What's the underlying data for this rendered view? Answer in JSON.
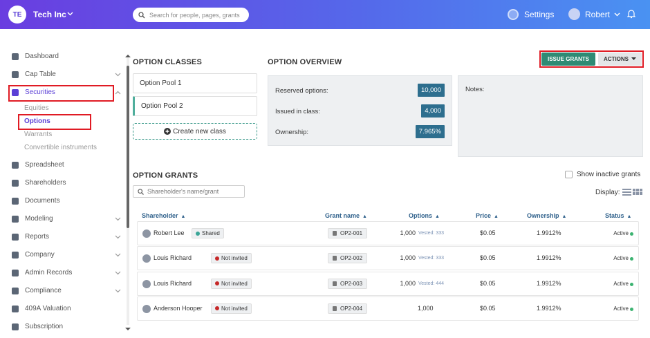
{
  "header": {
    "logo": "TE",
    "company": "Tech Inc",
    "search_placeholder": "Search for people, pages, grants",
    "settings": "Settings",
    "user": "Robert"
  },
  "sidebar": {
    "items": [
      {
        "label": "Dashboard",
        "expandable": false
      },
      {
        "label": "Cap Table",
        "expandable": true
      },
      {
        "label": "Securities",
        "expandable": true,
        "active": true,
        "children": [
          "Equities",
          "Options",
          "Warrants",
          "Convertible instruments"
        ],
        "active_child": 1
      },
      {
        "label": "Spreadsheet",
        "expandable": false
      },
      {
        "label": "Shareholders",
        "expandable": false
      },
      {
        "label": "Documents",
        "expandable": false
      },
      {
        "label": "Modeling",
        "expandable": true
      },
      {
        "label": "Reports",
        "expandable": true
      },
      {
        "label": "Company",
        "expandable": true
      },
      {
        "label": "Admin Records",
        "expandable": true
      },
      {
        "label": "Compliance",
        "expandable": true
      },
      {
        "label": "409A Valuation",
        "expandable": false
      },
      {
        "label": "Subscription",
        "expandable": false
      }
    ]
  },
  "option_classes": {
    "title": "OPTION CLASSES",
    "items": [
      "Option Pool 1",
      "Option Pool 2"
    ],
    "selected": 1,
    "create": "Create new class"
  },
  "overview": {
    "title": "OPTION OVERVIEW",
    "rows": [
      {
        "label": "Reserved options:",
        "value": "10,000"
      },
      {
        "label": "Issued in class:",
        "value": "4,000"
      },
      {
        "label": "Ownership:",
        "value": "7.965%"
      }
    ]
  },
  "notes": {
    "label": "Notes:"
  },
  "buttons": {
    "issue": "ISSUE GRANTS",
    "actions": "ACTIONS"
  },
  "grants": {
    "title": "OPTION GRANTS",
    "search_placeholder": "Shareholder's name/grant",
    "show_inactive": "Show inactive grants",
    "display": "Display:",
    "columns": [
      "Shareholder",
      "Grant name",
      "Options",
      "Price",
      "Ownership",
      "Status"
    ],
    "rows": [
      {
        "name": "Robert Lee",
        "badge": "Shared",
        "badge_color": "#3aa597",
        "grant": "OP2-001",
        "options": "1,000",
        "vested": "Vested: 333",
        "price": "$0.05",
        "ownership": "1.9912%",
        "status": "Active"
      },
      {
        "name": "Louis Richard",
        "badge": "Not invited",
        "badge_color": "#c62828",
        "grant": "OP2-002",
        "options": "1,000",
        "vested": "Vested: 333",
        "price": "$0.05",
        "ownership": "1.9912%",
        "status": "Active"
      },
      {
        "name": "Louis Richard",
        "badge": "Not invited",
        "badge_color": "#c62828",
        "grant": "OP2-003",
        "options": "1,000",
        "vested": "Vested: 444",
        "price": "$0.05",
        "ownership": "1.9912%",
        "status": "Active"
      },
      {
        "name": "Anderson Hooper",
        "badge": "Not invited",
        "badge_color": "#c62828",
        "grant": "OP2-004",
        "options": "1,000",
        "price": "$0.05",
        "ownership": "1.9912%",
        "status": "Active"
      }
    ]
  }
}
